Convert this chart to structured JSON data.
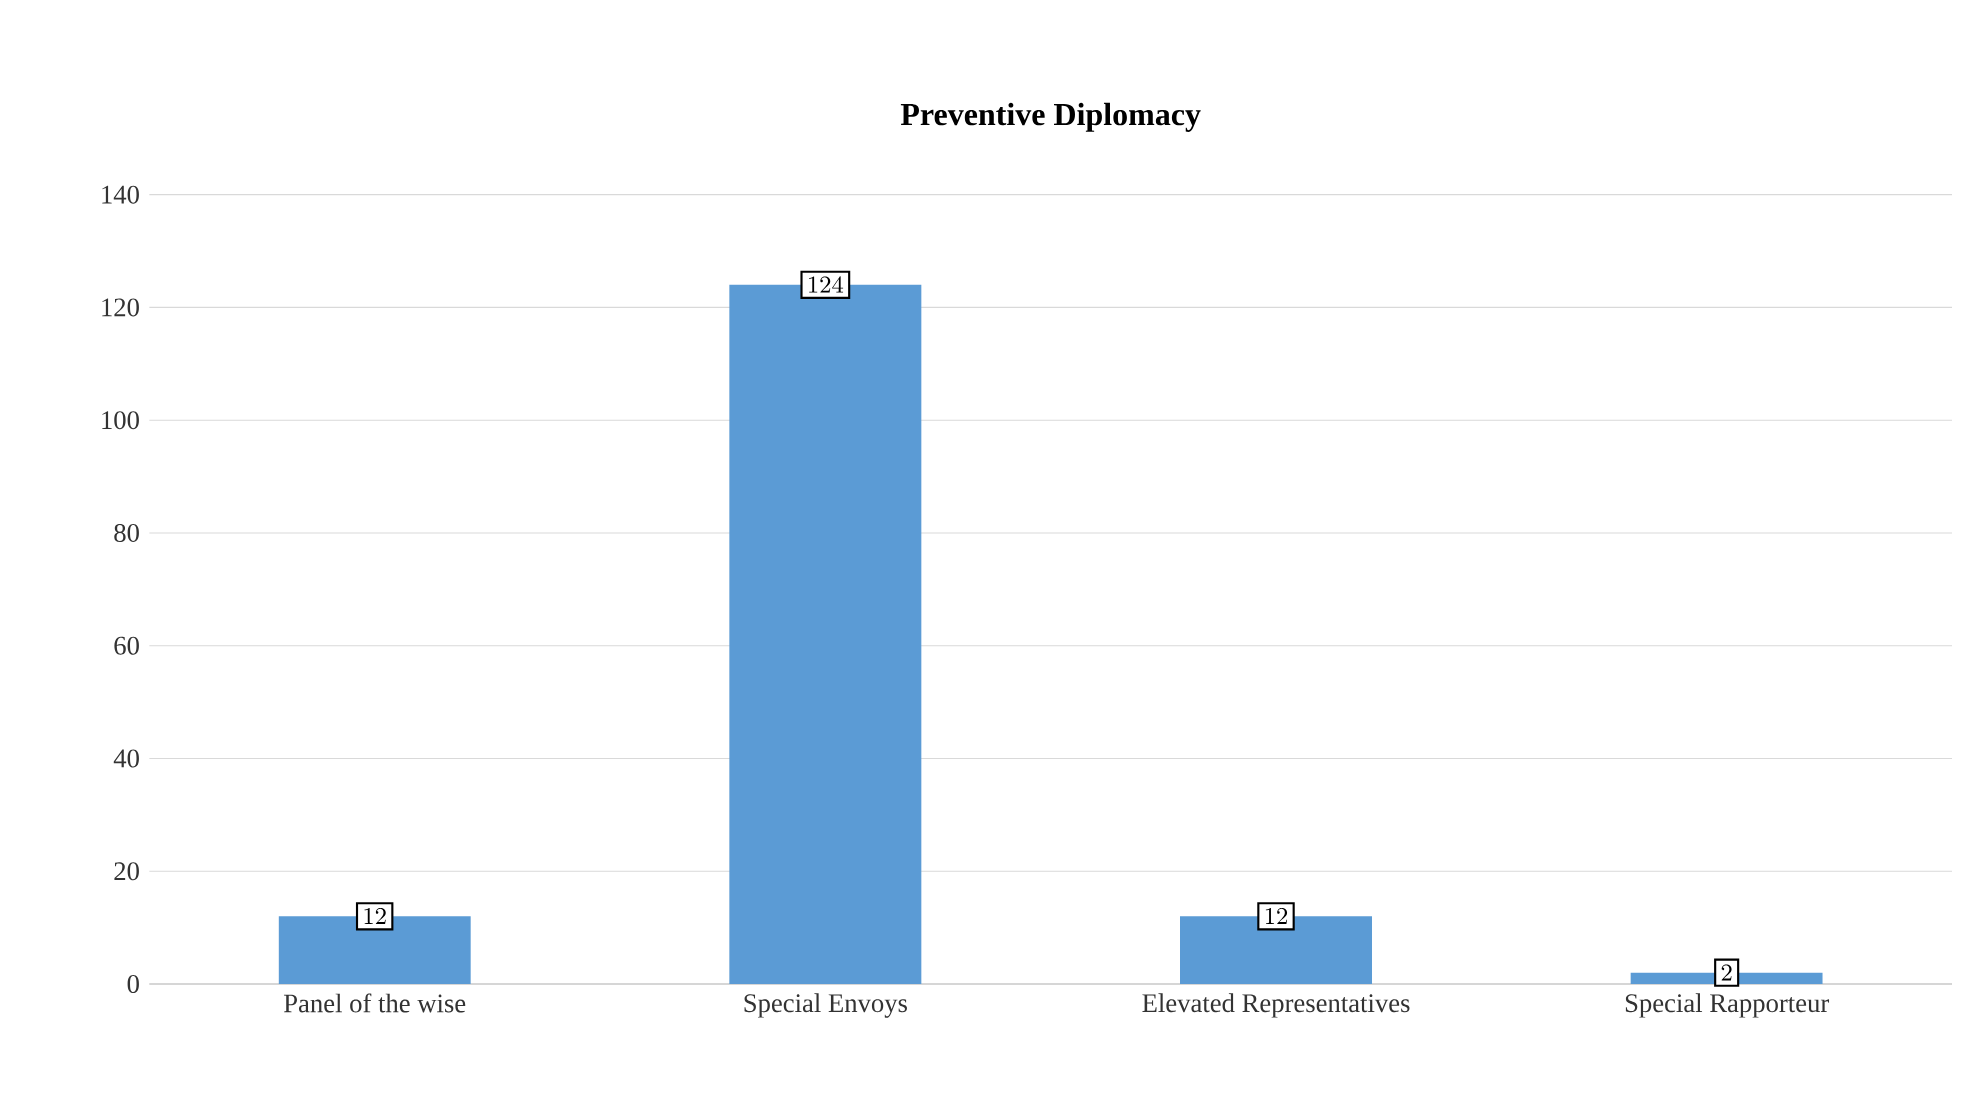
{
  "chart_data": {
    "type": "bar",
    "title": "Preventive Diplomacy",
    "categories": [
      "Panel of the wise",
      "Special Envoys",
      "Elevated Representatives",
      "Special Rapporteur"
    ],
    "values": [
      12,
      124,
      12,
      2
    ],
    "color": "#5b9bd5",
    "ylim": [
      0,
      140
    ],
    "yticks": [
      0,
      20,
      40,
      60,
      80,
      100,
      120,
      140
    ],
    "grid": "y",
    "data_labels": true
  }
}
